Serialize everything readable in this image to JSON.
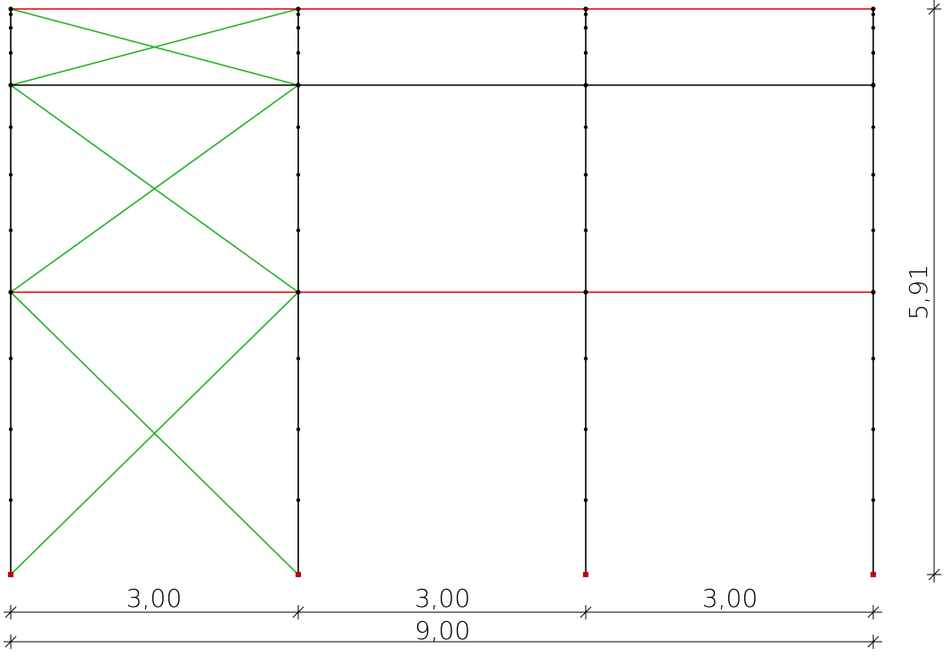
{
  "colors": {
    "column": "#000000",
    "beam_red": "#e00000",
    "beam_black": "#000000",
    "brace": "#22b422",
    "support": "#c00000",
    "node": "#000000",
    "dimension": "#000000"
  },
  "dimensions": {
    "bay_1": "3,00",
    "bay_2": "3,00",
    "bay_3": "3,00",
    "total_width": "9,00",
    "height": "5,91"
  }
}
